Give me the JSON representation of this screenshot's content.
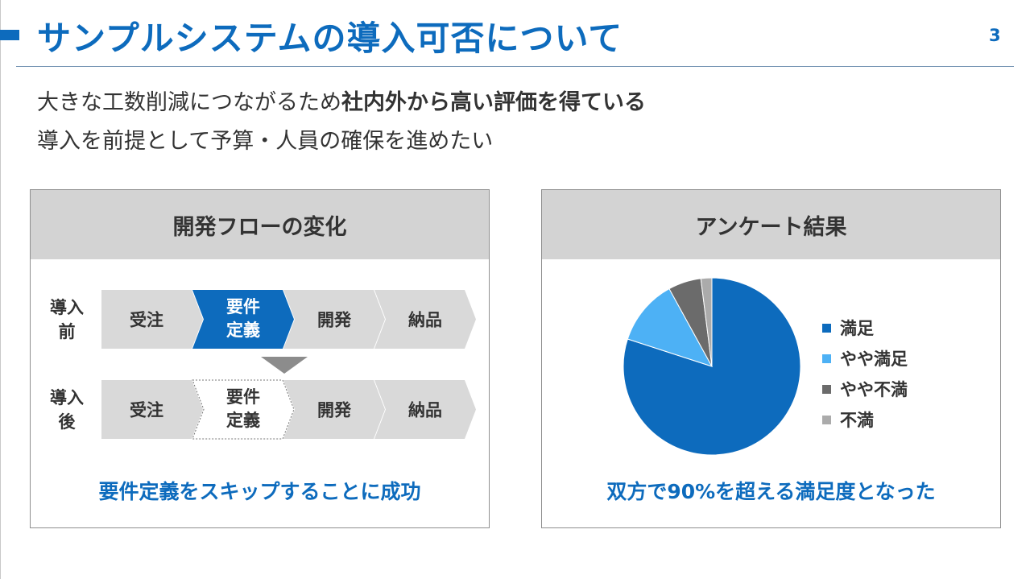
{
  "slide": {
    "title": "サンプルシステムの導入可否について",
    "page_number": "3",
    "lead_line1_normal": "大きな工数削減につながるため",
    "lead_line1_bold": "社内外から高い評価を得ている",
    "lead_line2": "導入を前提として予算・人員の確保を進めたい"
  },
  "flow_panel": {
    "heading": "開発フローの変化",
    "before_label": [
      "導入",
      "前"
    ],
    "after_label": [
      "導入",
      "後"
    ],
    "before_steps": [
      {
        "line1": "受注",
        "line2": ""
      },
      {
        "line1": "要件",
        "line2": "定義"
      },
      {
        "line1": "開発",
        "line2": ""
      },
      {
        "line1": "納品",
        "line2": ""
      }
    ],
    "after_steps": [
      {
        "line1": "受注",
        "line2": ""
      },
      {
        "line1": "要件",
        "line2": "定義"
      },
      {
        "line1": "開発",
        "line2": ""
      },
      {
        "line1": "納品",
        "line2": ""
      }
    ],
    "caption": "要件定義をスキップすることに成功",
    "colors": {
      "highlight": "#0d6bbd",
      "step": "#d9d9d9",
      "skipped": "#ffffff"
    }
  },
  "survey_panel": {
    "heading": "アンケート結果",
    "caption": "双方で90%を超える満足度となった"
  },
  "chart_data": {
    "type": "pie",
    "title": "",
    "categories": [
      "満足",
      "やや満足",
      "やや不満",
      "不満"
    ],
    "values": [
      80,
      12,
      6,
      2
    ],
    "colors": [
      "#0d6bbd",
      "#4db1f5",
      "#6b6b6b",
      "#ababab"
    ],
    "legend": "right",
    "start_angle_deg": 0,
    "direction": "clockwise"
  }
}
